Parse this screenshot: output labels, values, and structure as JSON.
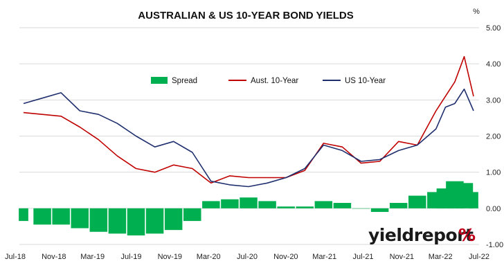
{
  "chart_data": {
    "type": "line",
    "title": "AUSTRALIAN & US 10-YEAR BOND YIELDS",
    "unit_label": "%",
    "y_axis_side": "right",
    "ylim": [
      -1.0,
      5.0
    ],
    "y_ticks": [
      "5.00",
      "4.00",
      "3.00",
      "2.00",
      "1.00",
      "0.00",
      "-1.00"
    ],
    "y_tick_values": [
      5,
      4,
      3,
      2,
      1,
      0,
      -1
    ],
    "x_ticks": [
      "Jul-18",
      "Nov-18",
      "Mar-19",
      "Jul-19",
      "Nov-19",
      "Mar-20",
      "Jul-20",
      "Nov-20",
      "Mar-21",
      "Jul-21",
      "Nov-21",
      "Mar-22",
      "Jul-22"
    ],
    "x_range": [
      "2018-07",
      "2022-07"
    ],
    "grid": "horizontal",
    "legend_position": "top-center",
    "x": [
      "2018-07",
      "2018-09",
      "2018-11",
      "2019-01",
      "2019-03",
      "2019-05",
      "2019-07",
      "2019-09",
      "2019-11",
      "2020-01",
      "2020-03",
      "2020-05",
      "2020-07",
      "2020-09",
      "2020-11",
      "2021-01",
      "2021-03",
      "2021-05",
      "2021-07",
      "2021-09",
      "2021-11",
      "2022-01",
      "2022-03",
      "2022-04",
      "2022-05",
      "2022-06",
      "2022-07"
    ],
    "series": [
      {
        "name": "Spread",
        "kind": "bar",
        "color": "#00b050",
        "values": [
          -0.35,
          -0.45,
          -0.45,
          -0.55,
          -0.65,
          -0.7,
          -0.75,
          -0.7,
          -0.6,
          -0.35,
          0.2,
          0.25,
          0.3,
          0.2,
          0.05,
          0.05,
          0.2,
          0.15,
          0.0,
          -0.1,
          0.15,
          0.35,
          0.45,
          0.55,
          0.75,
          0.7,
          0.45
        ]
      },
      {
        "name": "Aust. 10-Year",
        "kind": "line",
        "color": "#c00000",
        "values": [
          2.65,
          2.6,
          2.55,
          2.25,
          1.9,
          1.45,
          1.1,
          1.0,
          1.2,
          1.1,
          0.7,
          0.9,
          0.85,
          0.85,
          0.85,
          1.05,
          1.8,
          1.7,
          1.25,
          1.3,
          1.85,
          1.75,
          2.7,
          3.1,
          3.5,
          4.2,
          3.1
        ]
      },
      {
        "name": "US 10-Year",
        "kind": "line",
        "color": "#1f2f6e",
        "values": [
          2.9,
          3.05,
          3.2,
          2.7,
          2.6,
          2.35,
          2.0,
          1.7,
          1.85,
          1.55,
          0.75,
          0.65,
          0.6,
          0.7,
          0.85,
          1.1,
          1.75,
          1.6,
          1.3,
          1.35,
          1.6,
          1.75,
          2.2,
          2.8,
          2.9,
          3.3,
          2.7
        ]
      }
    ]
  },
  "logo": {
    "text": "yieldreport",
    "mark": "%"
  }
}
